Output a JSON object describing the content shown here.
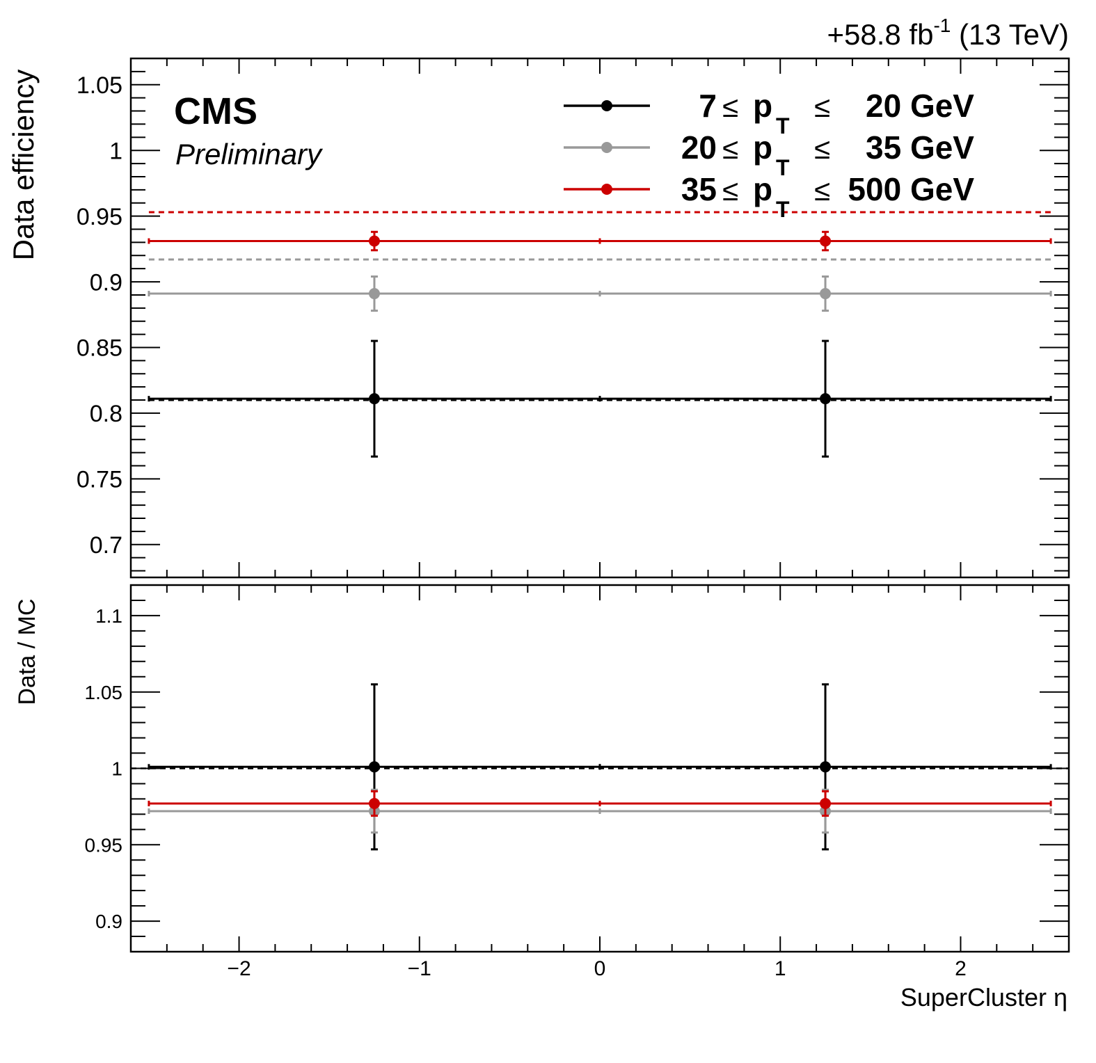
{
  "header": {
    "lumi_prefix": "+58.8 fb",
    "lumi_exp": "-1",
    "energy": " (13 TeV)"
  },
  "cms_label": "CMS",
  "preliminary_label": "Preliminary",
  "colors": {
    "black": "#000000",
    "grey": "#999999",
    "red": "#cc0000"
  },
  "chart_data": [
    {
      "type": "scatter",
      "panel": "top",
      "ylabel": "Data efficiency",
      "xlabel": "",
      "xlim": [
        -2.6,
        2.6
      ],
      "ylim": [
        0.675,
        1.07
      ],
      "yticks": [
        0.7,
        0.75,
        0.8,
        0.85,
        0.9,
        0.95,
        1,
        1.05
      ],
      "ytick_labels": [
        "0.7",
        "0.75",
        "0.8",
        "0.85",
        "0.9",
        "0.95",
        "1",
        "1.05"
      ],
      "legend_position": "top-right",
      "series": [
        {
          "name": "7 ≤ pT ≤ 20 GeV",
          "legend": {
            "lo": "7",
            "hi": "20 GeV"
          },
          "color": "#000000",
          "points": [
            {
              "x": -1.25,
              "xerr": 1.25,
              "y": 0.811,
              "yerr": 0.044
            },
            {
              "x": 1.25,
              "xerr": 1.25,
              "y": 0.811,
              "yerr": 0.044
            }
          ],
          "mc_reference": 0.81
        },
        {
          "name": "20 ≤ pT ≤ 35 GeV",
          "legend": {
            "lo": "20",
            "hi": "35 GeV"
          },
          "color": "#999999",
          "points": [
            {
              "x": -1.25,
              "xerr": 1.25,
              "y": 0.891,
              "yerr": 0.013
            },
            {
              "x": 1.25,
              "xerr": 1.25,
              "y": 0.891,
              "yerr": 0.013
            }
          ],
          "mc_reference": 0.917
        },
        {
          "name": "35 ≤ pT ≤ 500 GeV",
          "legend": {
            "lo": "35",
            "hi": "500 GeV"
          },
          "color": "#cc0000",
          "points": [
            {
              "x": -1.25,
              "xerr": 1.25,
              "y": 0.931,
              "yerr": 0.007
            },
            {
              "x": 1.25,
              "xerr": 1.25,
              "y": 0.931,
              "yerr": 0.007
            }
          ],
          "mc_reference": 0.953
        }
      ]
    },
    {
      "type": "scatter",
      "panel": "bottom",
      "ylabel": "Data / MC",
      "xlabel": "SuperCluster η",
      "xlim": [
        -2.6,
        2.6
      ],
      "ylim": [
        0.88,
        1.12
      ],
      "yticks": [
        0.9,
        0.95,
        1,
        1.05,
        1.1
      ],
      "ytick_labels": [
        "0.9",
        "0.95",
        "1",
        "1.05",
        "1.1"
      ],
      "xticks": [
        -2,
        -1,
        0,
        1,
        2
      ],
      "xtick_labels": [
        "−2",
        "−1",
        "0",
        "1",
        "2"
      ],
      "reference_line": 1.0,
      "series": [
        {
          "name": "7 ≤ pT ≤ 20 GeV",
          "color": "#000000",
          "points": [
            {
              "x": -1.25,
              "xerr": 1.25,
              "y": 1.001,
              "yerr": 0.054
            },
            {
              "x": 1.25,
              "xerr": 1.25,
              "y": 1.001,
              "yerr": 0.054
            }
          ]
        },
        {
          "name": "20 ≤ pT ≤ 35 GeV",
          "color": "#999999",
          "points": [
            {
              "x": -1.25,
              "xerr": 1.25,
              "y": 0.972,
              "yerr": 0.014
            },
            {
              "x": 1.25,
              "xerr": 1.25,
              "y": 0.972,
              "yerr": 0.014
            }
          ]
        },
        {
          "name": "35 ≤ pT ≤ 500 GeV",
          "color": "#cc0000",
          "points": [
            {
              "x": -1.25,
              "xerr": 1.25,
              "y": 0.977,
              "yerr": 0.008
            },
            {
              "x": 1.25,
              "xerr": 1.25,
              "y": 0.977,
              "yerr": 0.008
            }
          ]
        }
      ]
    }
  ]
}
